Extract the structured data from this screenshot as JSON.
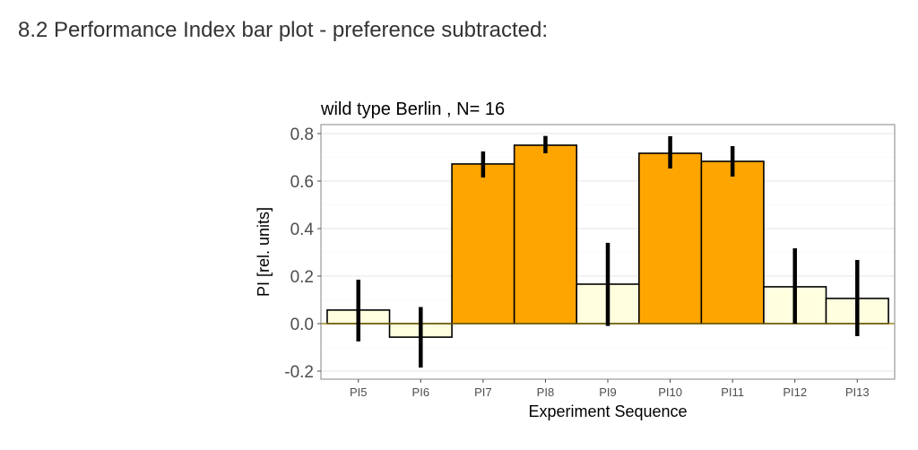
{
  "section": {
    "title": "8.2 Performance Index bar plot - preference subtracted:"
  },
  "chart_data": {
    "type": "bar",
    "title": "wild type Berlin , N= 16",
    "xlabel": "Experiment Sequence",
    "ylabel": "PI [rel. units]",
    "ylim": [
      -0.23,
      0.84
    ],
    "yticks": [
      -0.2,
      0.0,
      0.2,
      0.4,
      0.6,
      0.8
    ],
    "ytick_labels": [
      "-0.2",
      "0.0",
      "0.2",
      "0.4",
      "0.6",
      "0.8"
    ],
    "grid": true,
    "categories": [
      "PI5",
      "PI6",
      "PI7",
      "PI8",
      "PI9",
      "PI10",
      "PI11",
      "PI12",
      "PI13"
    ],
    "values": [
      0.057,
      -0.057,
      0.672,
      0.751,
      0.166,
      0.717,
      0.683,
      0.155,
      0.106
    ],
    "error_low": [
      -0.075,
      -0.185,
      0.615,
      0.717,
      -0.01,
      0.653,
      0.619,
      0.0,
      -0.053
    ],
    "error_high": [
      0.185,
      0.07,
      0.725,
      0.79,
      0.34,
      0.789,
      0.747,
      0.317,
      0.268
    ],
    "bar_types": [
      "pretest",
      "pretest",
      "training",
      "training",
      "pretest",
      "training",
      "training",
      "pretest",
      "pretest"
    ],
    "colors": {
      "training": "#FFA500",
      "pretest": "#FFFFE0",
      "bar_outline": "#000000",
      "error_bar": "#000000",
      "zero_line": "#8B7500",
      "grid": "#EBEBEB",
      "panel_border": "#999999"
    }
  }
}
